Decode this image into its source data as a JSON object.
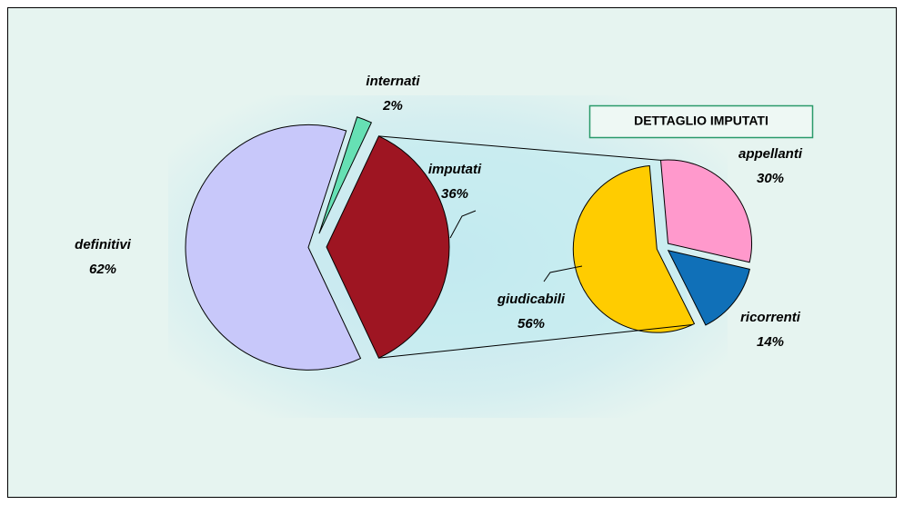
{
  "chart_data": [
    {
      "type": "pie",
      "categories": [
        "definitivi",
        "internati",
        "imputati"
      ],
      "values": [
        62,
        2,
        36
      ],
      "value_labels": [
        "62%",
        "2%",
        "36%"
      ],
      "colors": [
        "#c8c8fa",
        "#66e0b4",
        "#9e1522"
      ]
    },
    {
      "type": "pie",
      "title": "DETTAGLIO IMPUTATI",
      "categories": [
        "appellanti",
        "ricorrenti",
        "giudicabili"
      ],
      "values": [
        30,
        14,
        56
      ],
      "value_labels": [
        "30%",
        "14%",
        "56%"
      ],
      "colors": [
        "#ff99cc",
        "#1070b8",
        "#ffcc00"
      ]
    }
  ]
}
